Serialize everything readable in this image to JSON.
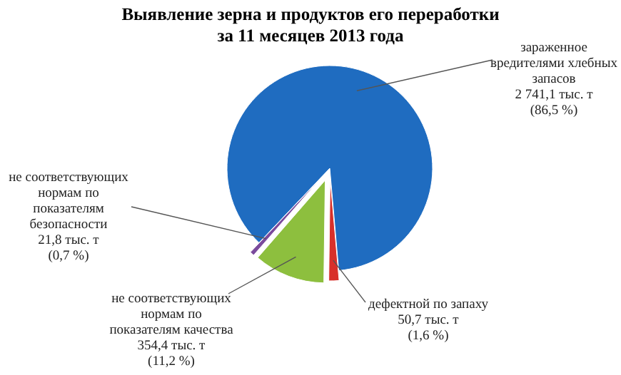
{
  "chart_data": {
    "type": "pie",
    "title": "Выявление зерна и продуктов его переработки\nза 11 месяцев 2013 года",
    "categories": [
      "зараженное вредителями хлебных запасов",
      "дефектной по запаху",
      "не соответствующих нормам по показателям качества",
      "не соответствующих нормам по показателям безопасности"
    ],
    "values": [
      2741.1,
      50.7,
      354.4,
      21.8
    ],
    "value_labels": [
      "2 741,1 тыс. т (86,5 %)",
      "50,7 тыс. т (1,6 %)",
      "354,4 тыс. т (11,2 %)",
      "21,8 тыс. т (0,7 %)"
    ],
    "colors": [
      "#1f6cc0",
      "#d8302a",
      "#8dbf3e",
      "#7b4b9d"
    ]
  }
}
